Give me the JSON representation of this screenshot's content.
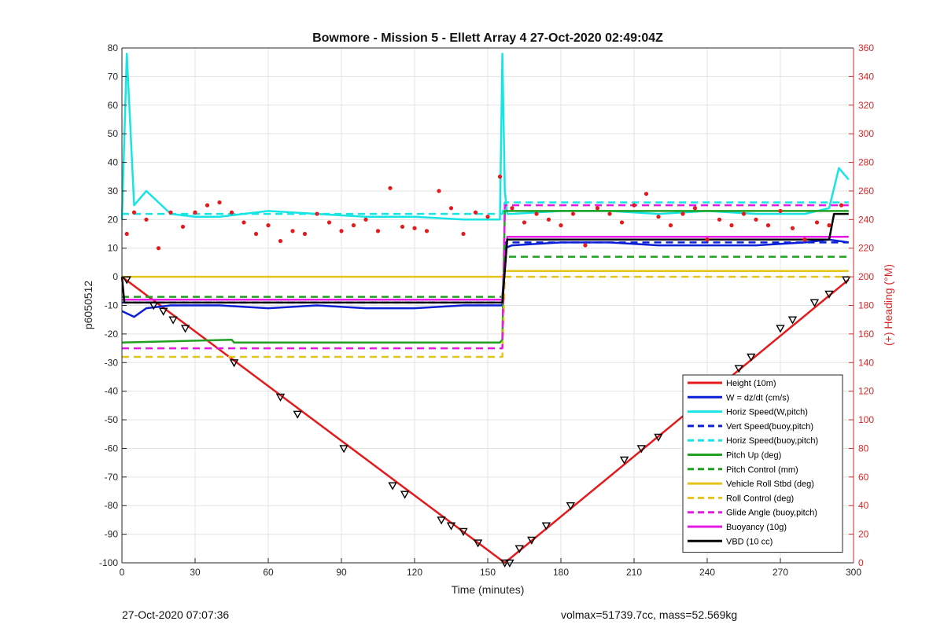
{
  "chart_data": {
    "type": "line",
    "title": "Bowmore - Mission 5 - Ellett Array 4 27-Oct-2020 02:49:04Z",
    "xlabel": "Time (minutes)",
    "ylabel": "p6050512",
    "y2label": "(+) Heading (°M)",
    "xlim": [
      0,
      300
    ],
    "ylim": [
      -100,
      80
    ],
    "y2lim": [
      0,
      360
    ],
    "xticks": [
      "0",
      "30",
      "60",
      "90",
      "120",
      "150",
      "180",
      "210",
      "240",
      "270",
      "300"
    ],
    "yticks": [
      "80",
      "70",
      "60",
      "50",
      "40",
      "30",
      "20",
      "10",
      "0",
      "-10",
      "-20",
      "-30",
      "-40",
      "-50",
      "-60",
      "-70",
      "-80",
      "-90",
      "-100"
    ],
    "y2ticks": [
      "360",
      "340",
      "320",
      "300",
      "280",
      "260",
      "240",
      "220",
      "200",
      "180",
      "160",
      "140",
      "120",
      "100",
      "80",
      "60",
      "40",
      "20",
      "0"
    ],
    "grid": true,
    "legend_position": "bottom-right",
    "series": [
      {
        "name": "Height (10m)",
        "color": "#e41a1c",
        "style": "solid",
        "x": [
          0,
          157,
          298
        ],
        "y": [
          0,
          -100,
          -1
        ]
      },
      {
        "name": "W = dz/dt (cm/s)",
        "color": "#0a1fd6",
        "style": "solid",
        "x": [
          0,
          5,
          10,
          20,
          40,
          60,
          80,
          100,
          120,
          140,
          156,
          157,
          160,
          180,
          200,
          220,
          240,
          260,
          280,
          290,
          298
        ],
        "y": [
          -12,
          -14,
          -11,
          -10,
          -10,
          -11,
          -10,
          -11,
          -11,
          -10,
          -10,
          10,
          11,
          12,
          12,
          11,
          11,
          11,
          12,
          13,
          12
        ]
      },
      {
        "name": "Horiz Speed(W,pitch)",
        "color": "#17e5e5",
        "style": "solid",
        "x": [
          0,
          2,
          5,
          10,
          20,
          30,
          40,
          60,
          80,
          100,
          120,
          140,
          155,
          156,
          157,
          158,
          160,
          180,
          200,
          220,
          240,
          260,
          280,
          290,
          294,
          298
        ],
        "y": [
          20,
          78,
          25,
          30,
          22,
          21,
          21,
          23,
          22,
          21,
          21,
          20,
          20,
          78,
          30,
          22,
          22,
          23,
          23,
          22,
          23,
          22,
          22,
          24,
          38,
          34
        ]
      },
      {
        "name": "Vert Speed(buoy,pitch)",
        "color": "#0a1fd6",
        "style": "dashed",
        "x": [
          0,
          156,
          157,
          298
        ],
        "y": [
          -9,
          -9,
          12,
          12
        ]
      },
      {
        "name": "Horiz Speed(buoy,pitch)",
        "color": "#17e5e5",
        "style": "dashed",
        "x": [
          0,
          156,
          157,
          298
        ],
        "y": [
          22,
          22,
          26,
          26
        ]
      },
      {
        "name": "Pitch Up (deg)",
        "color": "#20a020",
        "style": "solid",
        "x": [
          0,
          45,
          46,
          155,
          156,
          157,
          298
        ],
        "y": [
          -23,
          -22,
          -23,
          -23,
          -22,
          23,
          23
        ]
      },
      {
        "name": "Pitch Control (mm)",
        "color": "#20a020",
        "style": "dashed",
        "x": [
          0,
          156,
          157,
          298
        ],
        "y": [
          -7,
          -7,
          7,
          7
        ]
      },
      {
        "name": "Vehicle Roll Stbd (deg)",
        "color": "#e5c41a",
        "style": "solid",
        "x": [
          0,
          156,
          157,
          298
        ],
        "y": [
          0,
          0,
          2,
          2
        ]
      },
      {
        "name": "Roll Control (deg)",
        "color": "#e5c41a",
        "style": "dashed",
        "x": [
          0,
          156,
          157,
          298
        ],
        "y": [
          -28,
          -28,
          0,
          0
        ]
      },
      {
        "name": "Glide Angle (buoy,pitch)",
        "color": "#e51ae5",
        "style": "dashed",
        "x": [
          0,
          156,
          157,
          298
        ],
        "y": [
          -25,
          -25,
          25,
          25
        ]
      },
      {
        "name": "Buoyancy (10g)",
        "color": "#e51ae5",
        "style": "solid",
        "x": [
          0,
          156,
          158,
          298
        ],
        "y": [
          -8,
          -8,
          14,
          14
        ]
      },
      {
        "name": "VBD (10 cc)",
        "color": "#000000",
        "style": "solid",
        "x": [
          0,
          1,
          156,
          158,
          290,
          292,
          298
        ],
        "y": [
          0,
          -9,
          -9,
          13,
          13,
          22,
          22
        ]
      }
    ],
    "heading_points": {
      "color": "#e41a1c",
      "axis": "right",
      "x": [
        2,
        5,
        10,
        15,
        20,
        25,
        30,
        35,
        40,
        45,
        50,
        55,
        60,
        65,
        70,
        75,
        80,
        85,
        90,
        95,
        100,
        105,
        110,
        115,
        120,
        125,
        130,
        135,
        140,
        145,
        150,
        155,
        160,
        165,
        170,
        175,
        180,
        185,
        190,
        195,
        200,
        205,
        210,
        215,
        220,
        225,
        230,
        235,
        240,
        245,
        250,
        255,
        260,
        265,
        270,
        275,
        280,
        285,
        290,
        295
      ],
      "y": [
        230,
        245,
        240,
        220,
        245,
        235,
        245,
        250,
        252,
        245,
        238,
        230,
        236,
        225,
        232,
        230,
        244,
        238,
        232,
        236,
        240,
        232,
        262,
        235,
        234,
        232,
        260,
        248,
        230,
        245,
        242,
        270,
        248,
        238,
        244,
        240,
        236,
        244,
        222,
        248,
        244,
        238,
        250,
        258,
        242,
        236,
        244,
        248,
        226,
        240,
        236,
        244,
        240,
        236,
        246,
        234,
        226,
        238,
        236,
        250
      ]
    },
    "glide_markers": {
      "x": [
        2,
        13,
        17,
        21,
        26,
        46,
        65,
        72,
        91,
        111,
        116,
        131,
        135,
        140,
        146,
        157,
        159,
        163,
        168,
        174,
        184,
        206,
        213,
        220,
        233,
        253,
        258,
        270,
        275,
        284,
        290,
        297
      ],
      "y": [
        -1,
        -10,
        -12,
        -15,
        -18,
        -30,
        -42,
        -48,
        -60,
        -73,
        -76,
        -85,
        -87,
        -89,
        -93,
        -100,
        -100,
        -95,
        -92,
        -87,
        -80,
        -64,
        -60,
        -56,
        -45,
        -32,
        -28,
        -18,
        -15,
        -9,
        -6,
        -1
      ]
    },
    "footer_left": "27-Oct-2020 07:07:36",
    "footer_right": "volmax=51739.7cc, mass=52.569kg"
  }
}
